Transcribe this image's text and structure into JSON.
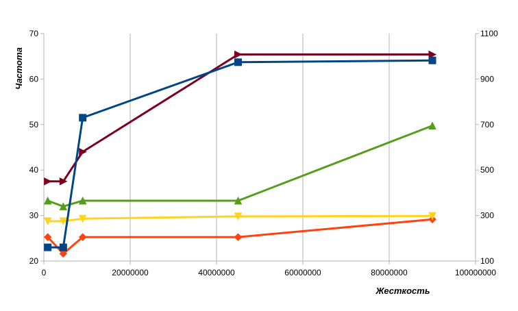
{
  "chart_data": {
    "type": "line",
    "xlabel": "Жесткость",
    "ylabel": "Частота",
    "xlim": [
      0,
      100000000
    ],
    "ylim": [
      20,
      70
    ],
    "y2lim": [
      100,
      1100
    ],
    "x_ticks": [
      "0",
      "20000000",
      "40000000",
      "60000000",
      "80000000",
      "100000000"
    ],
    "y_ticks": [
      "20",
      "30",
      "40",
      "50",
      "60",
      "70"
    ],
    "y2_ticks": [
      "100",
      "300",
      "500",
      "700",
      "900",
      "1100"
    ],
    "grid": "vertical",
    "series": [
      {
        "color": "#004586",
        "marker": "square",
        "axis": "left",
        "x": [
          900000,
          4500000,
          9000000,
          45000000,
          90000000
        ],
        "y": [
          23.0,
          23.0,
          51.5,
          63.7,
          64.1
        ]
      },
      {
        "color": "#7e0021",
        "marker": "triangle-right",
        "axis": "right",
        "x": [
          900000,
          4500000,
          9000000,
          45000000,
          90000000
        ],
        "y": [
          450,
          450,
          580,
          1008,
          1008
        ]
      },
      {
        "color": "#579d1c",
        "marker": "triangle-up",
        "axis": "right",
        "x": [
          900000,
          4500000,
          9000000,
          45000000,
          90000000
        ],
        "y": [
          365,
          340,
          365,
          365,
          695
        ]
      },
      {
        "color": "#ffd320",
        "marker": "triangle-down",
        "axis": "right",
        "x": [
          900000,
          4500000,
          9000000,
          45000000,
          90000000
        ],
        "y": [
          275,
          275,
          286,
          296,
          298
        ]
      },
      {
        "color": "#ff420e",
        "marker": "diamond",
        "axis": "right",
        "x": [
          900000,
          4500000,
          9000000,
          45000000,
          90000000
        ],
        "y": [
          205,
          132,
          205,
          205,
          283
        ]
      }
    ]
  }
}
